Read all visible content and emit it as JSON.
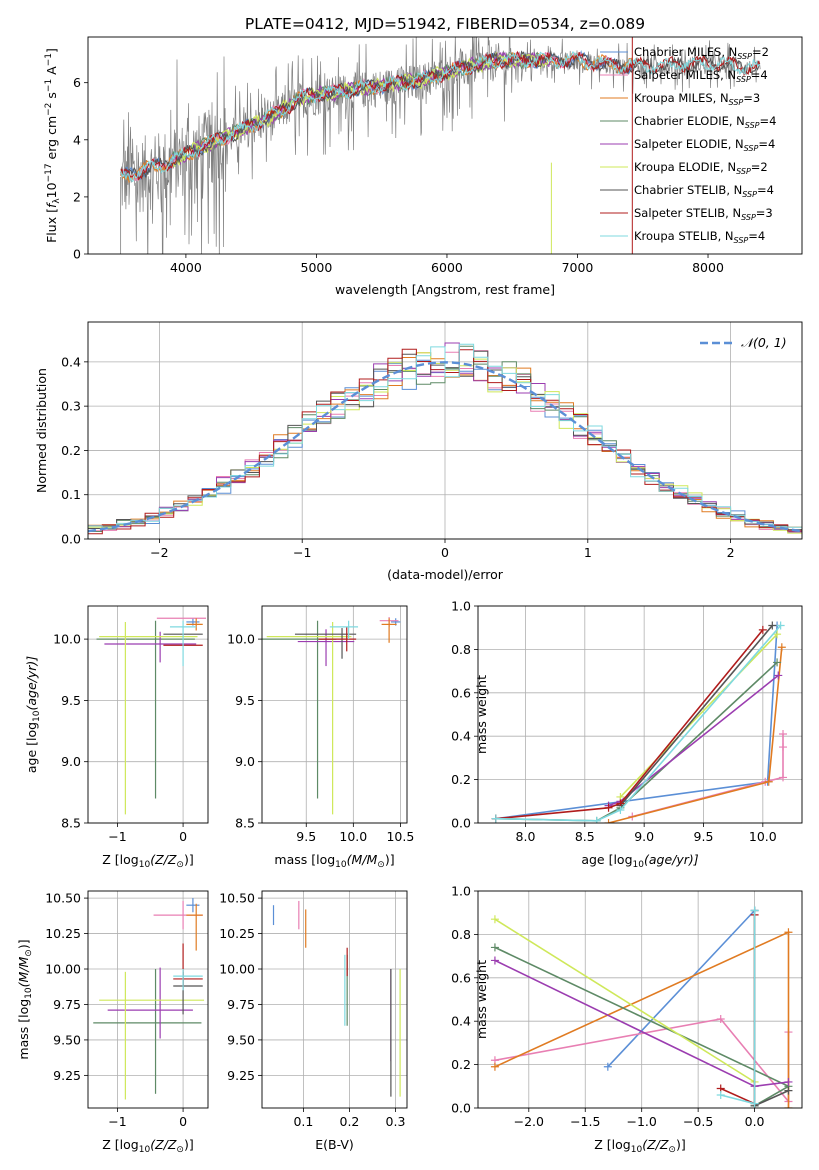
{
  "figure": {
    "title": "PLATE=0412, MJD=51942, FIBERID=0534, z=0.089"
  },
  "colors": {
    "Chabrier MILES": "#5b8fd6",
    "Salpeter MILES": "#e87fb3",
    "Kroupa MILES": "#e07b22",
    "Chabrier ELODIE": "#5e8a66",
    "Salpeter ELODIE": "#9b3db0",
    "Kroupa ELODIE": "#cfe85a",
    "Chabrier STELIB": "#555555",
    "Salpeter STELIB": "#b01c1c",
    "Kroupa STELIB": "#7fd9df",
    "observed": "#808080"
  },
  "chart_data": [
    {
      "id": "spectrum",
      "type": "line",
      "xlabel": "wavelength [Angstrom, rest frame]",
      "ylabel_parts": [
        "Flux [",
        "f",
        "λ",
        "10",
        "−17",
        " erg cm",
        "−2",
        " s",
        "−1",
        " A",
        "−1",
        "]"
      ],
      "xlim": [
        3250,
        8720
      ],
      "ylim": [
        0,
        7.6
      ],
      "xticks": [
        4000,
        5000,
        6000,
        7000,
        8000
      ],
      "yticks": [
        0,
        2,
        4,
        6
      ],
      "legend_position": "right",
      "legend": [
        {
          "name": "Chabrier MILES",
          "n": "2"
        },
        {
          "name": "Salpeter MILES",
          "n": "4"
        },
        {
          "name": "Kroupa MILES",
          "n": "3"
        },
        {
          "name": "Chabrier ELODIE",
          "n": "4"
        },
        {
          "name": "Salpeter ELODIE",
          "n": "4"
        },
        {
          "name": "Kroupa ELODIE",
          "n": "2"
        },
        {
          "name": "Chabrier STELIB",
          "n": "4"
        },
        {
          "name": "Salpeter STELIB",
          "n": "3"
        },
        {
          "name": "Kroupa STELIB",
          "n": "4"
        }
      ],
      "continuum": {
        "x": [
          3500,
          3800,
          4000,
          4300,
          4600,
          4900,
          5200,
          5500,
          5800,
          6100,
          6400,
          6700,
          7000,
          7300,
          7600,
          8000,
          8400
        ],
        "y": [
          2.7,
          3.1,
          3.5,
          4.1,
          4.7,
          5.5,
          5.7,
          5.9,
          6.1,
          6.5,
          6.8,
          6.8,
          6.8,
          6.6,
          6.6,
          6.7,
          6.5
        ]
      },
      "model_ranges": {
        "Chabrier MILES": [
          3500,
          7420
        ],
        "Salpeter MILES": [
          3500,
          7420
        ],
        "Kroupa MILES": [
          3500,
          7420
        ],
        "Chabrier ELODIE": [
          3900,
          6800
        ],
        "Salpeter ELODIE": [
          3900,
          6800
        ],
        "Kroupa ELODIE": [
          3900,
          6800
        ],
        "Chabrier STELIB": [
          3500,
          8400
        ],
        "Salpeter STELIB": [
          3500,
          8400
        ],
        "Kroupa STELIB": [
          3500,
          8400
        ]
      }
    },
    {
      "id": "residuals",
      "type": "histogram",
      "xlabel": "(data-model)/error",
      "ylabel": "Normed distribution",
      "xlim": [
        -2.5,
        2.5
      ],
      "ylim": [
        0,
        0.49
      ],
      "xticks": [
        -2,
        -1,
        0,
        1,
        2
      ],
      "yticks": [
        0.0,
        0.1,
        0.2,
        0.3,
        0.4
      ],
      "grid": true,
      "legend_position": "top-right",
      "reference": {
        "name": "𝒩(0, 1)",
        "mean": 0,
        "sigma": 1
      },
      "bin_width": 0.1
    },
    {
      "id": "age_vs_Z",
      "type": "errorbar",
      "xlabel_parts": [
        "Z [log",
        "10",
        "(Z/Z",
        "⊙",
        ")]"
      ],
      "ylabel_parts": [
        "age  [log",
        "10",
        "(age/yr)]"
      ],
      "xlim": [
        -1.45,
        0.38
      ],
      "ylim": [
        8.5,
        10.27
      ],
      "xticks": [
        -1,
        0
      ],
      "yticks": [
        8.5,
        9.0,
        9.5,
        10.0
      ],
      "grid": true,
      "points": [
        {
          "model": "Chabrier MILES",
          "x": 0.15,
          "xerr": [
            0.1,
            0.1
          ],
          "y": 10.14,
          "yerr": [
            0.03,
            0.03
          ]
        },
        {
          "model": "Salpeter MILES",
          "x": 0.05,
          "xerr": [
            0.45,
            0.3
          ],
          "y": 10.17,
          "yerr": [
            0.0,
            0.0
          ]
        },
        {
          "model": "Kroupa MILES",
          "x": 0.2,
          "xerr": [
            0.15,
            0.1
          ],
          "y": 10.12,
          "yerr": [
            0.05,
            0.05
          ]
        },
        {
          "model": "Chabrier ELODIE",
          "x": -0.42,
          "xerr": [
            0.9,
            0.6
          ],
          "y": 10.0,
          "yerr": [
            1.3,
            0.15
          ]
        },
        {
          "model": "Salpeter ELODIE",
          "x": -0.35,
          "xerr": [
            0.85,
            0.55
          ],
          "y": 9.96,
          "yerr": [
            0.15,
            0.1
          ]
        },
        {
          "model": "Kroupa ELODIE",
          "x": -0.88,
          "xerr": [
            0.4,
            1.1
          ],
          "y": 10.02,
          "yerr": [
            1.45,
            0.12
          ]
        },
        {
          "model": "Chabrier STELIB",
          "x": 0.0,
          "xerr": [
            0.3,
            0.3
          ],
          "y": 10.04,
          "yerr": [
            0.0,
            0.0
          ]
        },
        {
          "model": "Salpeter STELIB",
          "x": 0.0,
          "xerr": [
            0.3,
            0.3
          ],
          "y": 9.95,
          "yerr": [
            0.0,
            0.0
          ]
        },
        {
          "model": "Kroupa STELIB",
          "x": 0.0,
          "xerr": [
            0.2,
            0.2
          ],
          "y": 10.1,
          "yerr": [
            0.32,
            0.05
          ]
        }
      ]
    },
    {
      "id": "age_vs_mass",
      "type": "errorbar",
      "xlabel_parts": [
        "mass [log",
        "10",
        "(M/M",
        "⊙",
        ")]"
      ],
      "ylabel_parts": [],
      "xlim": [
        9.03,
        10.57
      ],
      "ylim": [
        8.5,
        10.27
      ],
      "xticks": [
        9.5,
        10.0,
        10.5
      ],
      "yticks": [
        8.5,
        9.0,
        9.5,
        10.0
      ],
      "grid": true,
      "points": [
        {
          "model": "Chabrier MILES",
          "x": 10.45,
          "xerr": [
            0.05,
            0.05
          ],
          "y": 10.14,
          "yerr": [
            0.03,
            0.03
          ]
        },
        {
          "model": "Salpeter MILES",
          "x": 10.38,
          "xerr": [
            0.1,
            0.1
          ],
          "y": 10.15,
          "yerr": [
            0.05,
            0.03
          ]
        },
        {
          "model": "Kroupa MILES",
          "x": 10.38,
          "xerr": [
            0.08,
            0.08
          ],
          "y": 10.12,
          "yerr": [
            0.15,
            0.05
          ]
        },
        {
          "model": "Chabrier ELODIE",
          "x": 9.62,
          "xerr": [
            0.6,
            0.2
          ],
          "y": 10.0,
          "yerr": [
            1.3,
            0.15
          ]
        },
        {
          "model": "Salpeter ELODIE",
          "x": 9.71,
          "xerr": [
            0.3,
            0.3
          ],
          "y": 9.98,
          "yerr": [
            0.2,
            0.1
          ]
        },
        {
          "model": "Kroupa ELODIE",
          "x": 9.78,
          "xerr": [
            0.7,
            0.2
          ],
          "y": 10.02,
          "yerr": [
            1.45,
            0.12
          ]
        },
        {
          "model": "Chabrier STELIB",
          "x": 9.88,
          "xerr": [
            0.5,
            0.15
          ],
          "y": 10.04,
          "yerr": [
            0.2,
            0.05
          ]
        },
        {
          "model": "Salpeter STELIB",
          "x": 9.93,
          "xerr": [
            0.3,
            0.1
          ],
          "y": 10.0,
          "yerr": [
            0.1,
            0.1
          ]
        },
        {
          "model": "Kroupa STELIB",
          "x": 9.95,
          "xerr": [
            0.2,
            0.1
          ],
          "y": 10.1,
          "yerr": [
            0.1,
            0.05
          ]
        }
      ]
    },
    {
      "id": "weight_vs_age",
      "type": "line",
      "xlabel_parts": [
        "age  [log",
        "10",
        "(age/yr)]"
      ],
      "ylabel": "mass weight",
      "xlim": [
        7.6,
        10.33
      ],
      "ylim": [
        0,
        1
      ],
      "xticks": [
        8.0,
        8.5,
        9.0,
        9.5,
        10.0
      ],
      "yticks": [
        0.0,
        0.2,
        0.4,
        0.6,
        0.8,
        1.0
      ],
      "grid": true,
      "series": [
        {
          "model": "Chabrier MILES",
          "x": [
            7.75,
            10.04,
            10.12
          ],
          "y": [
            0.02,
            0.19,
            0.91
          ]
        },
        {
          "model": "Salpeter MILES",
          "x": [
            8.9,
            10.02,
            10.17,
            10.17,
            10.17
          ],
          "y": [
            0.03,
            0.19,
            0.21,
            0.35,
            0.41
          ]
        },
        {
          "model": "Kroupa MILES",
          "x": [
            8.7,
            10.05,
            10.16
          ],
          "y": [
            0.0,
            0.19,
            0.81
          ]
        },
        {
          "model": "Chabrier ELODIE",
          "x": [
            7.75,
            8.6,
            8.8,
            10.12
          ],
          "y": [
            0.02,
            0.01,
            0.07,
            0.74
          ]
        },
        {
          "model": "Salpeter ELODIE",
          "x": [
            8.7,
            8.8,
            10.13
          ],
          "y": [
            0.08,
            0.1,
            0.68
          ]
        },
        {
          "model": "Kroupa ELODIE",
          "x": [
            8.8,
            10.12
          ],
          "y": [
            0.12,
            0.87
          ]
        },
        {
          "model": "Chabrier STELIB",
          "x": [
            8.8,
            10.08
          ],
          "y": [
            0.08,
            0.91
          ]
        },
        {
          "model": "Salpeter STELIB",
          "x": [
            7.75,
            8.7,
            8.8,
            10.0
          ],
          "y": [
            0.02,
            0.07,
            0.09,
            0.89
          ]
        },
        {
          "model": "Kroupa STELIB",
          "x": [
            7.75,
            8.6,
            8.8,
            10.15
          ],
          "y": [
            0.02,
            0.01,
            0.06,
            0.91
          ]
        }
      ]
    },
    {
      "id": "mass_vs_Z",
      "type": "errorbar",
      "xlabel_parts": [
        "Z [log",
        "10",
        "(Z/Z",
        "⊙",
        ")]"
      ],
      "ylabel_parts": [
        "mass [log",
        "10",
        "(M/M",
        "⊙",
        ")]"
      ],
      "xlim": [
        -1.45,
        0.38
      ],
      "ylim": [
        9.02,
        10.55
      ],
      "xticks": [
        -1,
        0
      ],
      "yticks": [
        9.25,
        9.5,
        9.75,
        10.0,
        10.25,
        10.5
      ],
      "grid": true,
      "points": [
        {
          "model": "Chabrier MILES",
          "x": 0.15,
          "xerr": [
            0.1,
            0.1
          ],
          "y": 10.45,
          "yerr": [
            0.05,
            0.05
          ]
        },
        {
          "model": "Salpeter MILES",
          "x": 0.0,
          "xerr": [
            0.45,
            0.3
          ],
          "y": 10.38,
          "yerr": [
            0.1,
            0.1
          ]
        },
        {
          "model": "Kroupa MILES",
          "x": 0.2,
          "xerr": [
            0.15,
            0.1
          ],
          "y": 10.38,
          "yerr": [
            0.25,
            0.08
          ]
        },
        {
          "model": "Chabrier ELODIE",
          "x": -0.42,
          "xerr": [
            0.95,
            0.7
          ],
          "y": 9.62,
          "yerr": [
            0.5,
            0.38
          ]
        },
        {
          "model": "Salpeter ELODIE",
          "x": -0.35,
          "xerr": [
            0.8,
            0.5
          ],
          "y": 9.71,
          "yerr": [
            0.2,
            0.3
          ]
        },
        {
          "model": "Kroupa ELODIE",
          "x": -0.88,
          "xerr": [
            0.4,
            1.2
          ],
          "y": 9.78,
          "yerr": [
            0.7,
            0.2
          ]
        },
        {
          "model": "Chabrier STELIB",
          "x": 0.0,
          "xerr": [
            0.15,
            0.3
          ],
          "y": 9.88,
          "yerr": [
            0.2,
            0.1
          ]
        },
        {
          "model": "Salpeter STELIB",
          "x": 0.0,
          "xerr": [
            0.15,
            0.3
          ],
          "y": 9.93,
          "yerr": [
            0.05,
            0.25
          ]
        },
        {
          "model": "Kroupa STELIB",
          "x": 0.0,
          "xerr": [
            0.15,
            0.3
          ],
          "y": 9.95,
          "yerr": [
            0.1,
            0.05
          ]
        }
      ]
    },
    {
      "id": "mass_vs_EBV",
      "type": "errorbar",
      "xlabel": "E(B-V)",
      "ylabel_parts": [],
      "xlim": [
        0.01,
        0.325
      ],
      "ylim": [
        9.02,
        10.55
      ],
      "xticks": [
        0.1,
        0.2,
        0.3
      ],
      "yticks": [
        9.25,
        9.5,
        9.75,
        10.0,
        10.25,
        10.5
      ],
      "grid": true,
      "points": [
        {
          "model": "Chabrier MILES",
          "x": 0.035,
          "xerr": [
            0,
            0
          ],
          "y": 10.38,
          "yerr": [
            0.07,
            0.07
          ]
        },
        {
          "model": "Salpeter MILES",
          "x": 0.09,
          "xerr": [
            0,
            0
          ],
          "y": 10.38,
          "yerr": [
            0.1,
            0.1
          ]
        },
        {
          "model": "Kroupa MILES",
          "x": 0.105,
          "xerr": [
            0,
            0
          ],
          "y": 10.3,
          "yerr": [
            0.15,
            0.12
          ]
        },
        {
          "model": "Chabrier ELODIE",
          "x": 0.195,
          "xerr": [
            0,
            0
          ],
          "y": 9.9,
          "yerr": [
            0.3,
            0.2
          ]
        },
        {
          "model": "Salpeter ELODIE",
          "x": 0.29,
          "xerr": [
            0,
            0
          ],
          "y": 9.65,
          "yerr": [
            0.3,
            0.35
          ]
        },
        {
          "model": "Kroupa ELODIE",
          "x": 0.31,
          "xerr": [
            0,
            0
          ],
          "y": 9.55,
          "yerr": [
            0.45,
            0.45
          ]
        },
        {
          "model": "Chabrier STELIB",
          "x": 0.29,
          "xerr": [
            0,
            0
          ],
          "y": 9.55,
          "yerr": [
            0.45,
            0.45
          ]
        },
        {
          "model": "Salpeter STELIB",
          "x": 0.195,
          "xerr": [
            0,
            0
          ],
          "y": 10.05,
          "yerr": [
            0.1,
            0.1
          ]
        },
        {
          "model": "Kroupa STELIB",
          "x": 0.19,
          "xerr": [
            0,
            0
          ],
          "y": 9.85,
          "yerr": [
            0.25,
            0.25
          ]
        }
      ]
    },
    {
      "id": "weight_vs_Z",
      "type": "line",
      "xlabel_parts": [
        "Z [log",
        "10",
        "(Z/Z",
        "⊙",
        ")]"
      ],
      "ylabel": "mass weight",
      "xlim": [
        -2.45,
        0.42
      ],
      "ylim": [
        0,
        1
      ],
      "xticks": [
        -2.0,
        -1.5,
        -1.0,
        -0.5,
        0.0
      ],
      "yticks": [
        0.0,
        0.2,
        0.4,
        0.6,
        0.8,
        1.0
      ],
      "grid": true,
      "series": [
        {
          "model": "Chabrier MILES",
          "x": [
            -1.3,
            0.0
          ],
          "y": [
            0.19,
            0.91
          ]
        },
        {
          "model": "Salpeter MILES",
          "x": [
            -2.3,
            -0.3,
            0.3,
            0.3
          ],
          "y": [
            0.22,
            0.41,
            0.03,
            0.35
          ]
        },
        {
          "model": "Kroupa MILES",
          "x": [
            -2.3,
            0.3,
            0.3
          ],
          "y": [
            0.19,
            0.81,
            0.0
          ]
        },
        {
          "model": "Chabrier ELODIE",
          "x": [
            -2.3,
            0.3,
            0.0
          ],
          "y": [
            0.74,
            0.1,
            0.01
          ]
        },
        {
          "model": "Salpeter ELODIE",
          "x": [
            -2.3,
            0.0,
            0.3
          ],
          "y": [
            0.68,
            0.1,
            0.12
          ]
        },
        {
          "model": "Kroupa ELODIE",
          "x": [
            -2.3,
            0.0
          ],
          "y": [
            0.87,
            0.12
          ]
        },
        {
          "model": "Chabrier STELIB",
          "x": [
            0.0,
            0.0,
            0.3
          ],
          "y": [
            0.91,
            0.01,
            0.08
          ]
        },
        {
          "model": "Salpeter STELIB",
          "x": [
            -0.3,
            0.0,
            0.0
          ],
          "y": [
            0.09,
            0.02,
            0.89
          ]
        },
        {
          "model": "Kroupa STELIB",
          "x": [
            -0.3,
            0.0,
            0.0
          ],
          "y": [
            0.06,
            0.02,
            0.91
          ]
        }
      ]
    }
  ]
}
